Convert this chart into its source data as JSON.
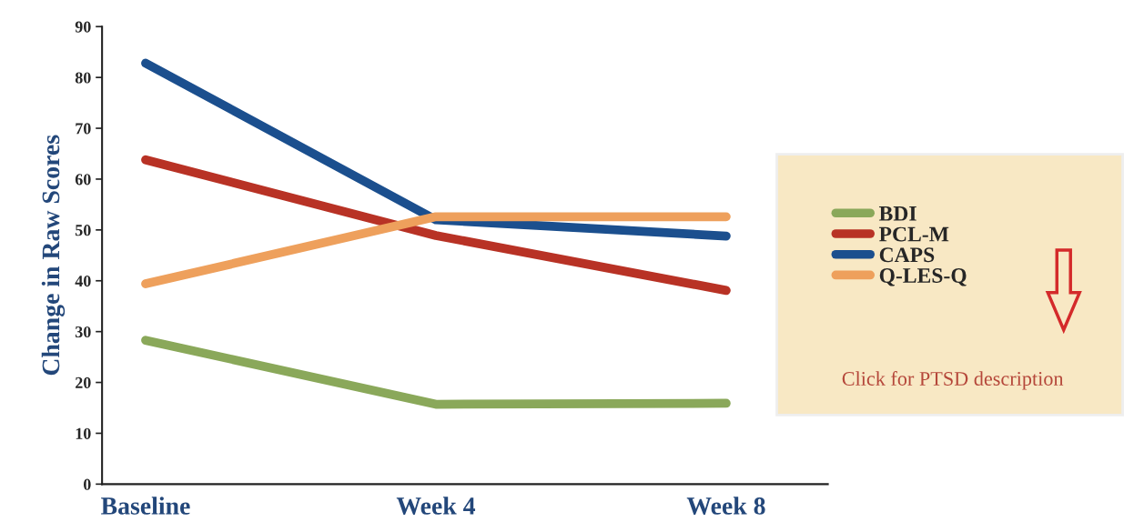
{
  "chart_data": {
    "type": "line",
    "ylabel": "Change in Raw Scores",
    "categories": [
      "Baseline",
      "Week 4",
      "Week 8"
    ],
    "series": [
      {
        "name": "BDI",
        "color": "#8aa85a",
        "values": [
          28.3,
          15.7,
          15.9
        ]
      },
      {
        "name": "PCL-M",
        "color": "#b83225",
        "values": [
          63.8,
          48.9,
          38.1
        ]
      },
      {
        "name": "CAPS",
        "color": "#1b4f8e",
        "values": [
          82.8,
          52,
          48.8
        ]
      },
      {
        "name": "Q-LES-Q",
        "color": "#eea05c",
        "values": [
          39.4,
          52.6,
          52.6
        ]
      }
    ],
    "ylim": [
      0,
      90
    ],
    "yticks": [
      0,
      10,
      20,
      30,
      40,
      50,
      60,
      70,
      80,
      90
    ],
    "grid": false,
    "legend": "right",
    "marker": "none",
    "line_style": "solid",
    "annotations": [
      "Click for PTSD description"
    ]
  }
}
